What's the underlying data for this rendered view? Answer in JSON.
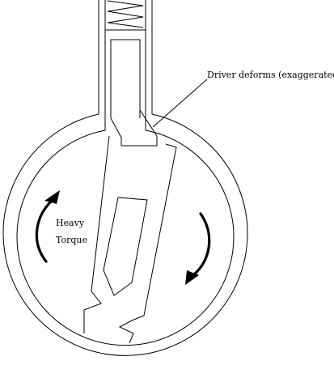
{
  "labels": {
    "driver": "Driver deforms (exaggerated)",
    "torque_line1": "Heavy",
    "torque_line2": "Torque"
  }
}
